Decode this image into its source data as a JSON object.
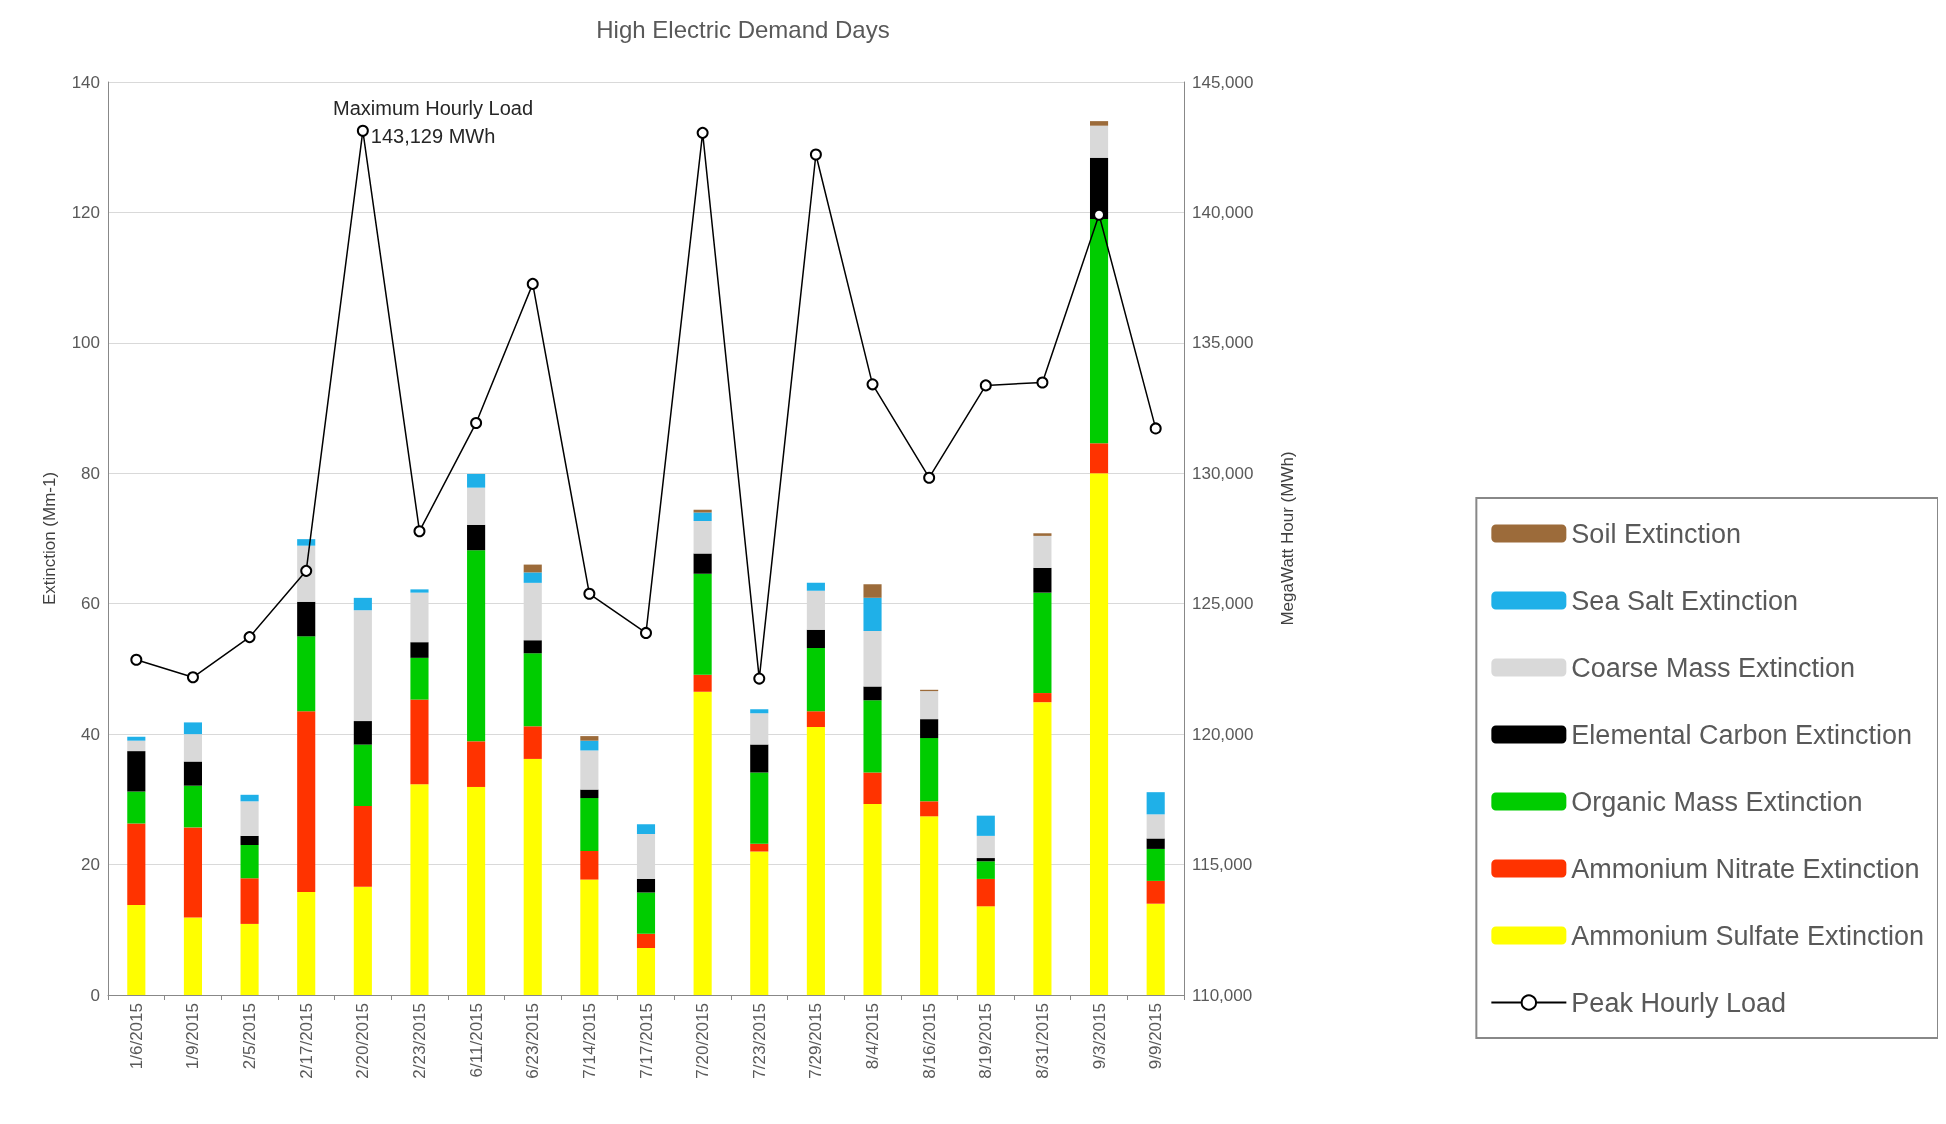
{
  "chart_data": {
    "type": "bar",
    "title": "High Electric Demand Days",
    "ylabel": "Extinction (Mm-1)",
    "y2label": "MegaWatt Hour (MWh)",
    "categories": [
      "1/6/2015",
      "1/9/2015",
      "2/5/2015",
      "2/17/2015",
      "2/20/2015",
      "2/23/2015",
      "6/11/2015",
      "6/23/2015",
      "7/14/2015",
      "7/17/2015",
      "7/20/2015",
      "7/23/2015",
      "7/29/2015",
      "8/4/2015",
      "8/16/2015",
      "8/19/2015",
      "8/31/2015",
      "9/3/2015",
      "9/9/2015"
    ],
    "stacked": true,
    "series": [
      {
        "name": "Ammonium Sulfate Extinction",
        "color": "#ffff00",
        "values": [
          13.8,
          11.9,
          10.9,
          15.8,
          16.6,
          32.3,
          31.9,
          36.2,
          17.7,
          7.2,
          46.5,
          22.0,
          41.1,
          29.3,
          27.4,
          13.6,
          44.9,
          80.0,
          14.0
        ]
      },
      {
        "name": "Ammonium Nitrate Extinction",
        "color": "#ff3300",
        "values": [
          12.5,
          13.8,
          7.0,
          27.7,
          12.4,
          13.0,
          7.0,
          5.0,
          4.4,
          2.2,
          2.6,
          1.2,
          2.4,
          4.8,
          2.3,
          4.2,
          1.4,
          4.6,
          3.5
        ]
      },
      {
        "name": "Organic Mass Extinction",
        "color": "#00cc00",
        "values": [
          4.9,
          6.4,
          5.1,
          11.5,
          9.4,
          6.4,
          29.3,
          11.2,
          8.1,
          6.3,
          15.5,
          10.9,
          9.7,
          11.1,
          9.7,
          2.7,
          15.4,
          34.4,
          4.9
        ]
      },
      {
        "name": "Elemental Carbon Extinction",
        "color": "#000000",
        "values": [
          6.2,
          3.7,
          1.4,
          5.3,
          3.6,
          2.4,
          3.9,
          2.0,
          1.3,
          2.1,
          3.1,
          4.3,
          2.8,
          2.1,
          2.9,
          0.5,
          3.8,
          9.4,
          1.6
        ]
      },
      {
        "name": "Coarse Mass Extinction",
        "color": "#d9d9d9",
        "values": [
          1.6,
          4.2,
          5.3,
          8.6,
          17.0,
          7.6,
          5.7,
          8.8,
          6.0,
          6.9,
          5.0,
          4.8,
          6.0,
          8.5,
          4.3,
          3.4,
          4.9,
          4.9,
          3.7
        ]
      },
      {
        "name": "Sea Salt Extinction",
        "color": "#1fb0e8",
        "values": [
          0.6,
          1.8,
          1.0,
          1.0,
          1.9,
          0.5,
          2.1,
          1.6,
          1.5,
          1.5,
          1.3,
          0.6,
          1.2,
          5.1,
          0,
          3.1,
          0,
          0,
          3.4
        ]
      },
      {
        "name": "Soil Extinction",
        "color": "#9c6b3a",
        "values": [
          0,
          0,
          0,
          0,
          0,
          0,
          0,
          1.2,
          0.7,
          0,
          0.4,
          0,
          0,
          2.1,
          0.2,
          0,
          0.4,
          0.7,
          0
        ]
      },
      {
        "name": "Peak Hourly Load",
        "type": "line",
        "axis": "y2",
        "color": "#000000",
        "values": [
          122850,
          122180,
          123720,
          126260,
          143129,
          127780,
          131930,
          137260,
          125380,
          123880,
          143050,
          122130,
          142220,
          133410,
          129830,
          133370,
          133480,
          139910,
          131720
        ]
      }
    ],
    "marker": "circle",
    "ylim": [
      0,
      140
    ],
    "yticks": [
      0,
      20,
      40,
      60,
      80,
      100,
      120,
      140
    ],
    "y2lim": [
      110000,
      145000
    ],
    "y2ticks": [
      {
        "value": 110000,
        "label": "110,000"
      },
      {
        "value": 115000,
        "label": "115,000"
      },
      {
        "value": 120000,
        "label": "120,000"
      },
      {
        "value": 125000,
        "label": "125,000"
      },
      {
        "value": 130000,
        "label": "130,000"
      },
      {
        "value": 135000,
        "label": "135,000"
      },
      {
        "value": 140000,
        "label": "140,000"
      },
      {
        "value": 145000,
        "label": "145,000"
      }
    ],
    "annotations": [
      "Maximum Hourly Load\n143,129 MWh"
    ],
    "grid": "y",
    "legend": "right"
  }
}
